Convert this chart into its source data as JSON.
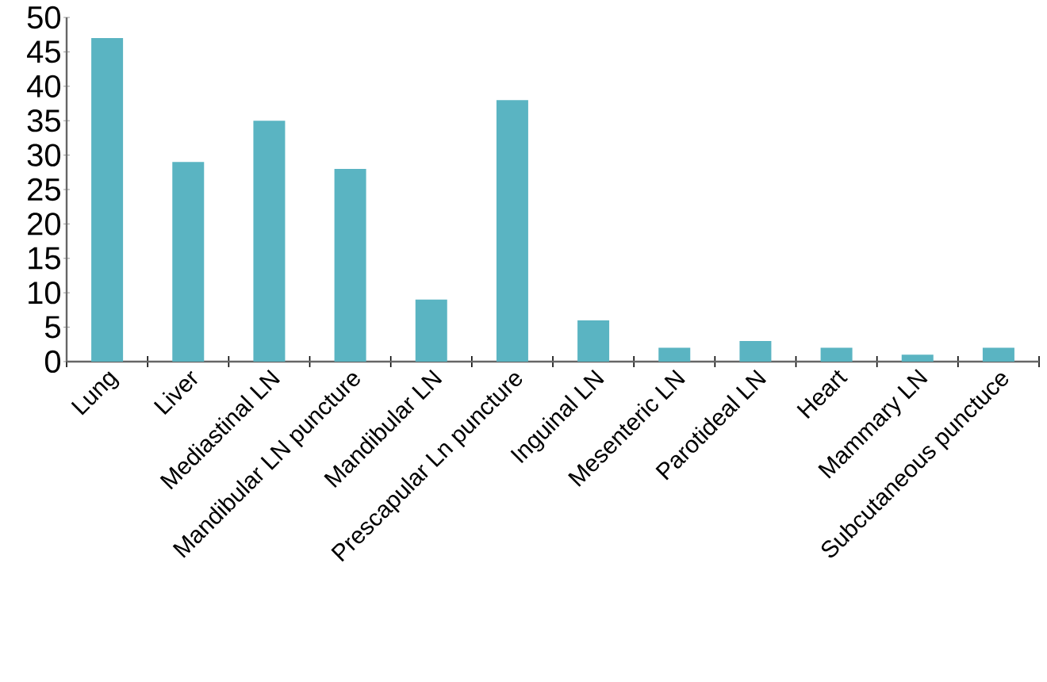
{
  "chart_data": {
    "type": "bar",
    "categories": [
      "Lung",
      "Liver",
      "Mediastinal LN",
      "Mandibular LN puncture",
      "Mandibular LN",
      "Prescapular Ln puncture",
      "Inguinal LN",
      "Mesenteric LN",
      "Parotideal LN",
      "Heart",
      "Mammary LN",
      "Subcutaneous punctuce"
    ],
    "values": [
      47,
      29,
      35,
      28,
      9,
      38,
      6,
      2,
      3,
      2,
      1,
      2
    ],
    "color": "#5ab4c2",
    "ylim": [
      0,
      50
    ],
    "yticks": [
      0,
      5,
      10,
      15,
      20,
      25,
      30,
      35,
      40,
      45,
      50
    ]
  }
}
